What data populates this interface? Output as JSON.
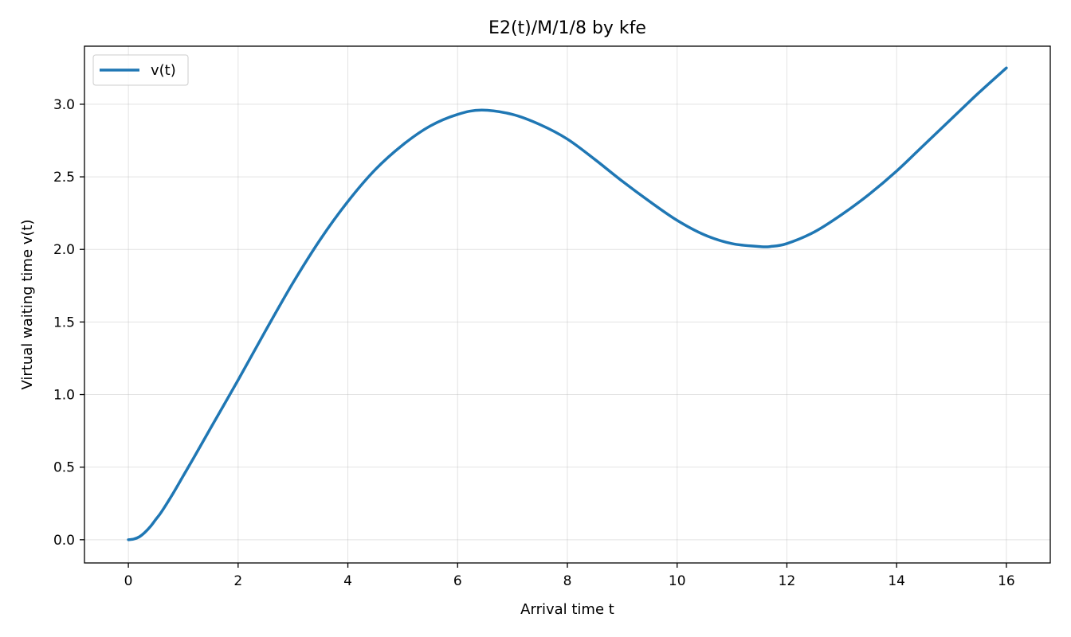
{
  "chart_data": {
    "type": "line",
    "title": "E2(t)/M/1/8 by kfe",
    "xlabel": "Arrival time t",
    "ylabel": "Virtual waiting time v(t)",
    "xlim": [
      -0.8,
      16.8
    ],
    "ylim": [
      -0.16,
      3.4
    ],
    "xticks": [
      0,
      2,
      4,
      6,
      8,
      10,
      12,
      14,
      16
    ],
    "xtick_labels": [
      "0",
      "2",
      "4",
      "6",
      "8",
      "10",
      "12",
      "14",
      "16"
    ],
    "yticks": [
      0.0,
      0.5,
      1.0,
      1.5,
      2.0,
      2.5,
      3.0
    ],
    "ytick_labels": [
      "0.0",
      "0.5",
      "1.0",
      "1.5",
      "2.0",
      "2.5",
      "3.0"
    ],
    "grid": true,
    "legend_position": "upper-left",
    "series": [
      {
        "name": "v(t)",
        "color": "#1f77b4",
        "x": [
          0,
          0.1,
          0.2,
          0.3,
          0.4,
          0.5,
          0.6,
          0.8,
          1.0,
          1.2,
          1.5,
          2.0,
          2.5,
          3.0,
          3.5,
          4.0,
          4.5,
          5.0,
          5.5,
          6.0,
          6.44,
          7.0,
          7.5,
          8.0,
          8.5,
          9.0,
          9.5,
          10.0,
          10.5,
          11.0,
          11.5,
          11.7,
          12.0,
          12.5,
          13.0,
          13.5,
          14.0,
          14.5,
          15.0,
          15.5,
          16.0
        ],
        "y": [
          0.0,
          0.005,
          0.02,
          0.05,
          0.09,
          0.14,
          0.19,
          0.31,
          0.44,
          0.57,
          0.77,
          1.1,
          1.44,
          1.77,
          2.07,
          2.33,
          2.55,
          2.72,
          2.85,
          2.93,
          2.96,
          2.93,
          2.86,
          2.76,
          2.62,
          2.47,
          2.33,
          2.2,
          2.1,
          2.04,
          2.02,
          2.02,
          2.04,
          2.12,
          2.24,
          2.38,
          2.54,
          2.72,
          2.9,
          3.08,
          3.25
        ]
      }
    ]
  }
}
